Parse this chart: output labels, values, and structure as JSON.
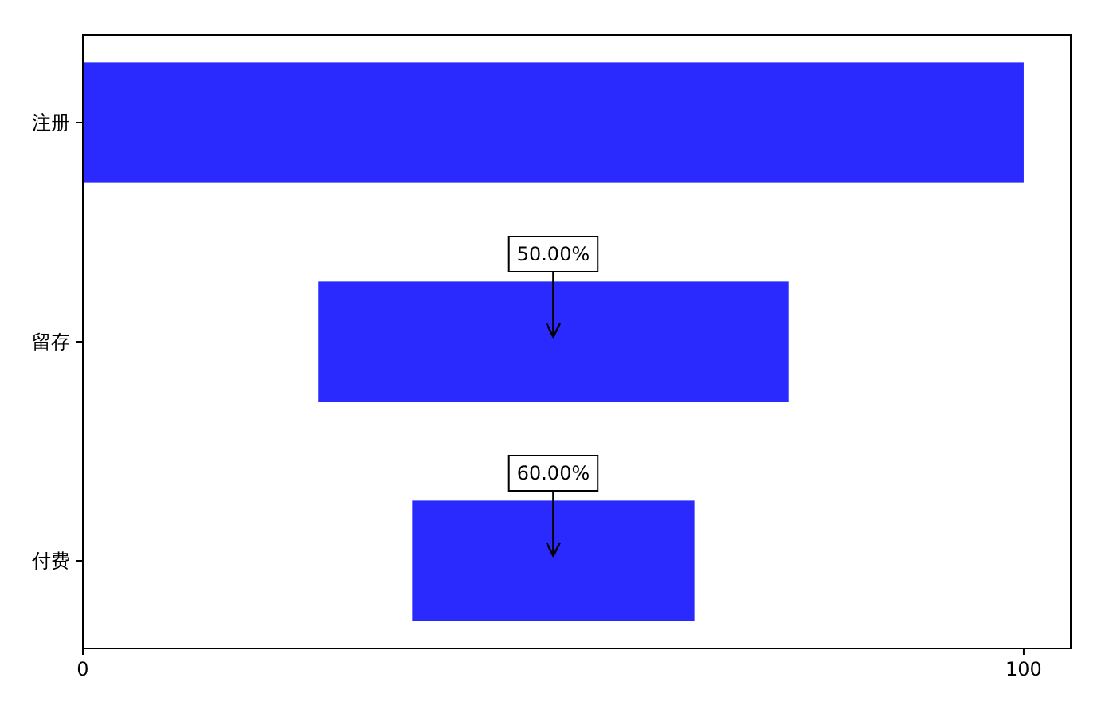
{
  "chart_data": {
    "type": "bar",
    "orientation": "horizontal",
    "categories": [
      "注册",
      "留存",
      "付费"
    ],
    "values": [
      100,
      50,
      30
    ],
    "base": [
      0,
      25,
      35
    ],
    "color": "#2a2aff",
    "xlim": [
      0,
      105
    ],
    "xticks": [
      0,
      100
    ],
    "annotations": [
      "50.00%",
      "60.00%"
    ]
  }
}
